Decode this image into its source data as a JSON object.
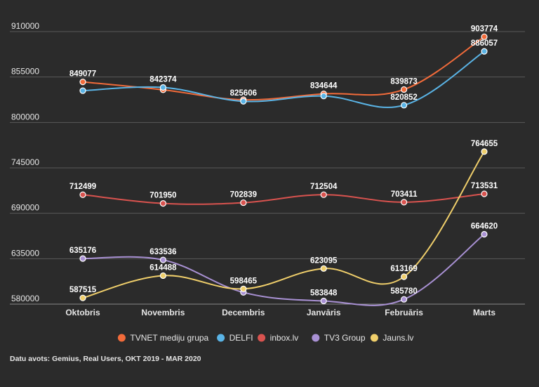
{
  "chart_data": {
    "type": "line",
    "categories": [
      "Oktobris",
      "Novembris",
      "Decembris",
      "Janvāris",
      "Februāris",
      "Marts"
    ],
    "y_ticks": [
      "910000",
      "855000",
      "800000",
      "745000",
      "690000",
      "635000",
      "580000"
    ],
    "ylim": [
      580000,
      910000
    ],
    "grid": true,
    "legend_position": "bottom",
    "series": [
      {
        "name": "TVNET mediju grupa",
        "color": "#f26b3a",
        "values": [
          849077,
          839500,
          827500,
          834644,
          839873,
          903774
        ],
        "labels": [
          "849077",
          null,
          null,
          "834644",
          "839873",
          "903774"
        ],
        "label_pos": [
          "above",
          null,
          null,
          "above",
          "above",
          "above"
        ]
      },
      {
        "name": "DELFI",
        "color": "#5ab4e6",
        "values": [
          838500,
          842374,
          825606,
          832000,
          820852,
          886057
        ],
        "labels": [
          null,
          "842374",
          "825606",
          null,
          "820852",
          "886057"
        ],
        "label_pos": [
          null,
          "above",
          "above",
          null,
          "above",
          "above"
        ]
      },
      {
        "name": "inbox.lv",
        "color": "#d9534f",
        "values": [
          712499,
          701950,
          702839,
          712504,
          703411,
          713531
        ],
        "labels": [
          "712499",
          "701950",
          "702839",
          "712504",
          "703411",
          "713531"
        ],
        "label_pos": [
          "above",
          "above",
          "above",
          "above",
          "above",
          "above"
        ]
      },
      {
        "name": "TV3 Group",
        "color": "#a991d4",
        "values": [
          635176,
          633536,
          594200,
          583848,
          585780,
          664620
        ],
        "labels": [
          "635176",
          "633536",
          null,
          "583848",
          "585780",
          "664620"
        ],
        "label_pos": [
          "above",
          "above",
          null,
          "above",
          "above",
          "above"
        ]
      },
      {
        "name": "Jauns.lv",
        "color": "#f0cf6b",
        "values": [
          587515,
          614488,
          598465,
          623095,
          613169,
          764655
        ],
        "labels": [
          "587515",
          "614488",
          "598465",
          "623095",
          "613169",
          "764655"
        ],
        "label_pos": [
          "above",
          "above",
          "above",
          "above",
          "above",
          "above"
        ]
      }
    ],
    "source": "Datu avots: Gemius, Real Users, OKT 2019 - MAR 2020"
  }
}
